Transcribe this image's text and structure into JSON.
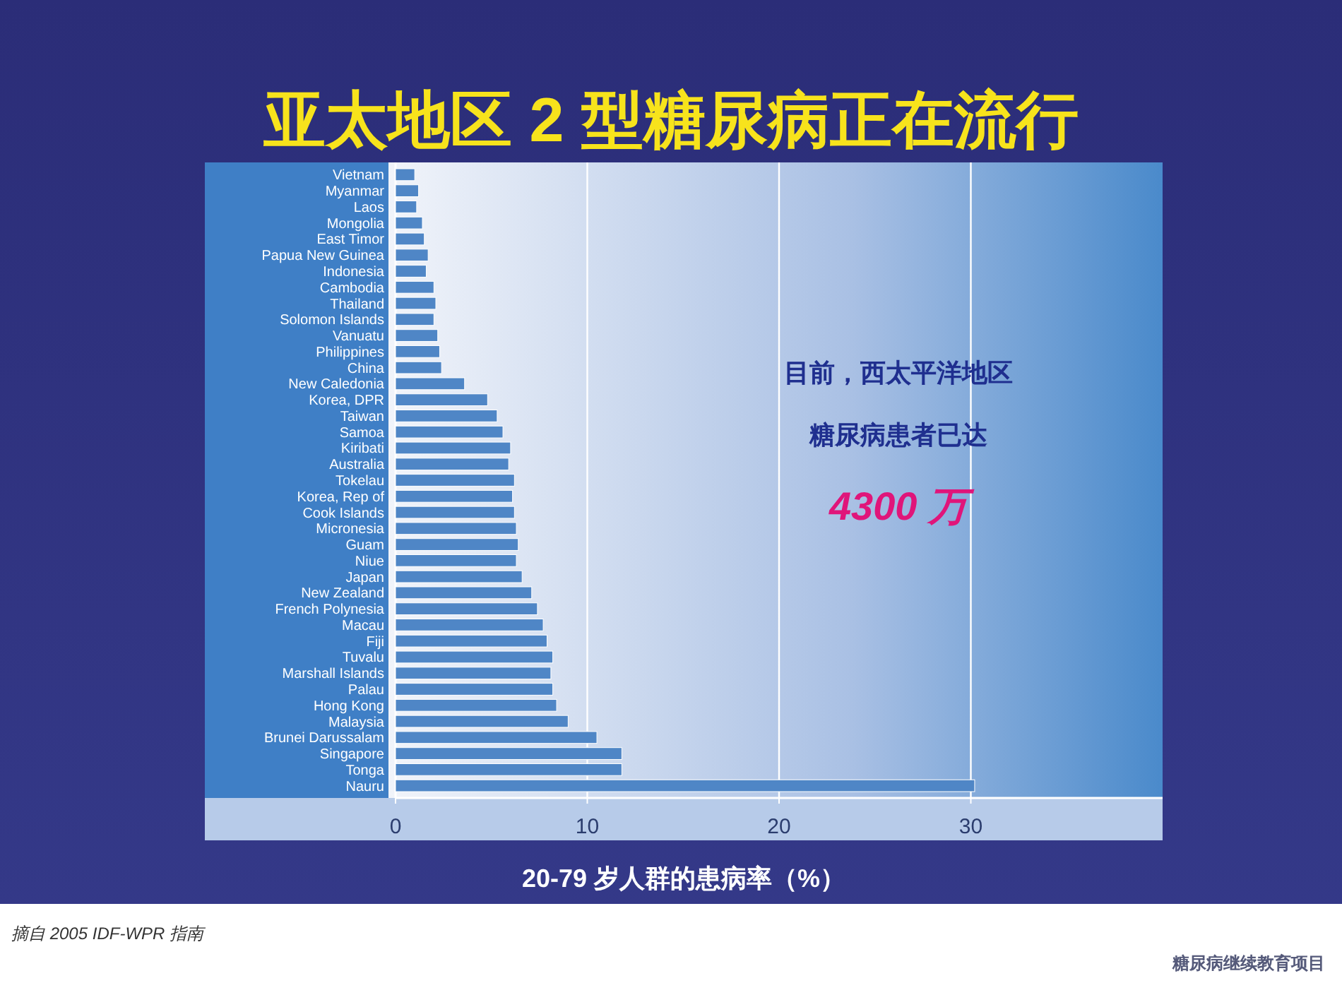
{
  "chart_data": {
    "type": "bar",
    "orientation": "horizontal",
    "title": "亚太地区 2 型糖尿病正在流行",
    "xlabel": "20-79 岁人群的患病率（%）",
    "categories": [
      "Vietnam",
      "Myanmar",
      "Laos",
      "Mongolia",
      "East Timor",
      "Papua New Guinea",
      "Indonesia",
      "Cambodia",
      "Thailand",
      "Solomon Islands",
      "Vanuatu",
      "Philippines",
      "China",
      "New Caledonia",
      "Korea, DPR",
      "Taiwan",
      "Samoa",
      "Kiribati",
      "Australia",
      "Tokelau",
      "Korea, Rep of",
      "Cook Islands",
      "Micronesia",
      "Guam",
      "Niue",
      "Japan",
      "New Zealand",
      "French Polynesia",
      "Macau",
      "Fiji",
      "Tuvalu",
      "Marshall Islands",
      "Palau",
      "Hong Kong",
      "Malaysia",
      "Brunei Darussalam",
      "Singapore",
      "Tonga",
      "Nauru"
    ],
    "values": [
      1.0,
      1.2,
      1.1,
      1.4,
      1.5,
      1.7,
      1.6,
      2.0,
      2.1,
      2.0,
      2.2,
      2.3,
      2.4,
      3.6,
      4.8,
      5.3,
      5.6,
      6.0,
      5.9,
      6.2,
      6.1,
      6.2,
      6.3,
      6.4,
      6.3,
      6.6,
      7.1,
      7.4,
      7.7,
      7.9,
      8.2,
      8.1,
      8.2,
      8.4,
      9.0,
      10.5,
      11.8,
      11.8,
      30.2
    ],
    "color": "#4f86c6",
    "xlim": [
      0,
      40
    ],
    "xticks": [
      0,
      10,
      20,
      30
    ],
    "grid": "x",
    "annotations": [
      "目前，西太平洋地区",
      "糖尿病患者已达",
      "4300 万",
      "摘自 2005 IDF-WPR 指南",
      "糖尿病继续教育项目"
    ]
  }
}
